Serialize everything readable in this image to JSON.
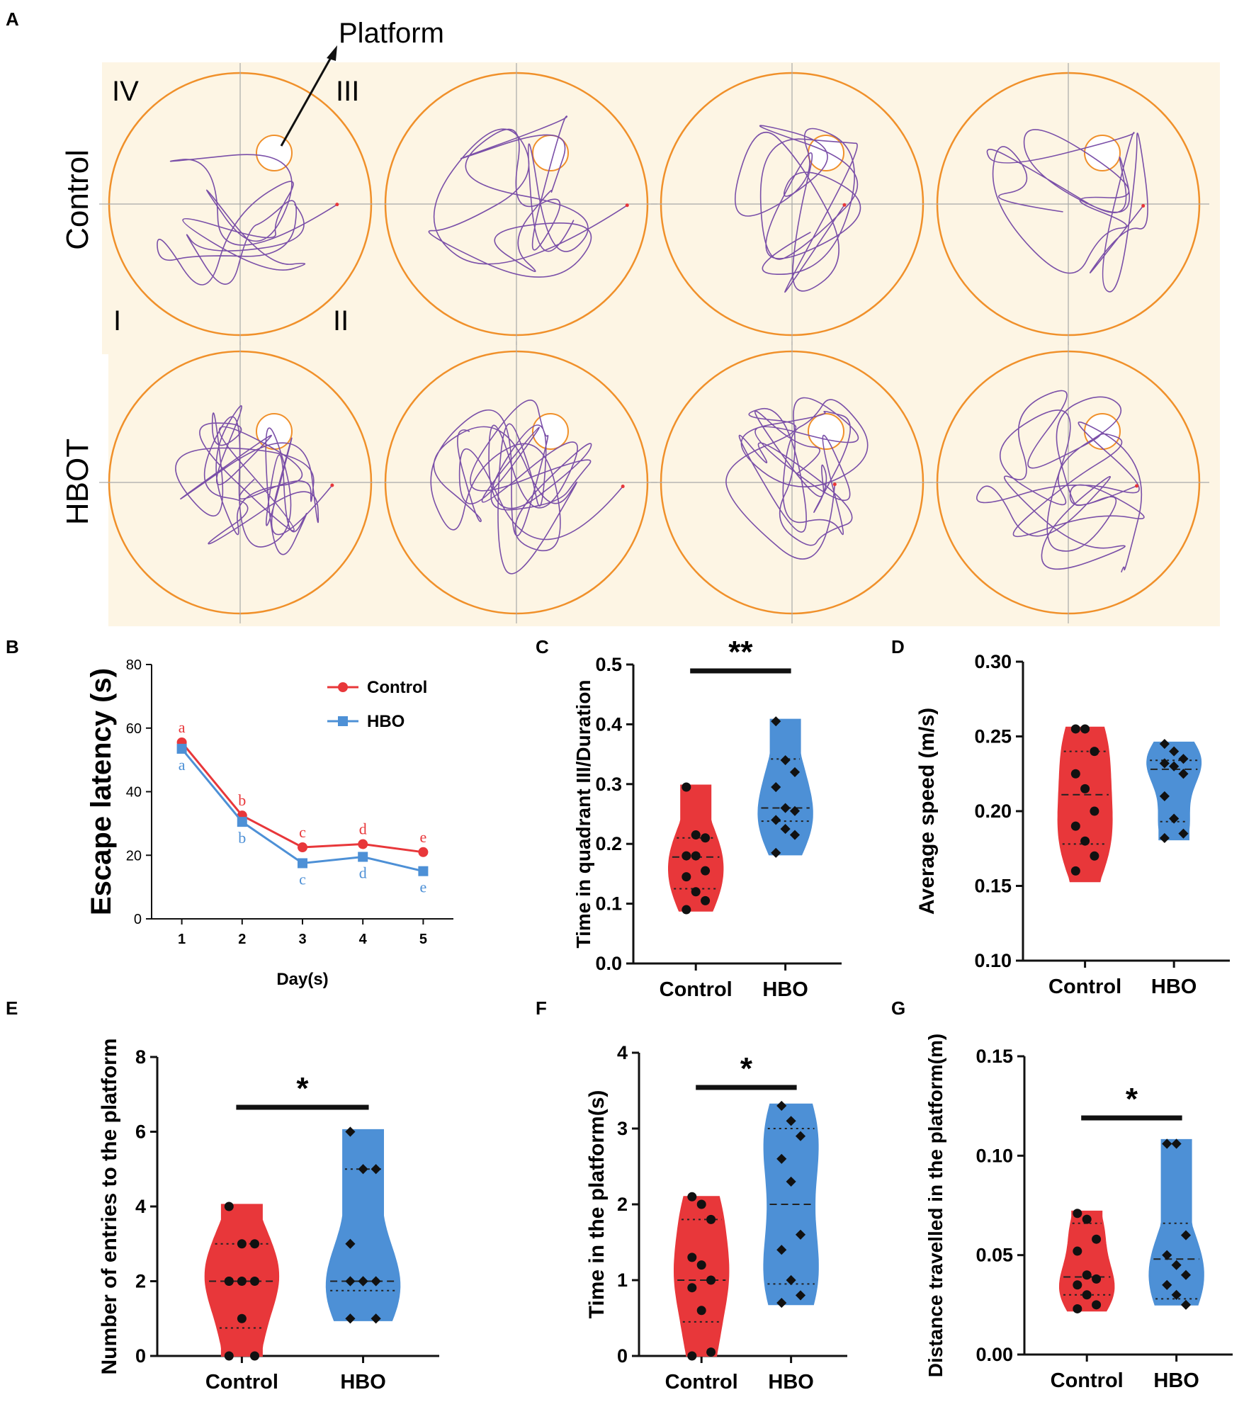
{
  "panel_letters": [
    "A",
    "B",
    "C",
    "D",
    "E",
    "F",
    "G"
  ],
  "panel_a": {
    "platform_label": "Platform",
    "quadrants": [
      "IV",
      "III",
      "I",
      "II"
    ],
    "row_labels": [
      "Control",
      "HBOT"
    ],
    "colors": {
      "tank": "#f0902a",
      "path": "#7a4fa8",
      "bg": "#fdf5e4",
      "cross": "#a9a9a9"
    }
  },
  "colors": {
    "control": "#e8373a",
    "hbo": "#4d90d6",
    "ink": "#111111"
  },
  "chart_data": [
    {
      "panel": "B",
      "type": "line",
      "xlabel": "Day(s)",
      "ylabel": "Escape latency (s)",
      "x": [
        1,
        2,
        3,
        4,
        5
      ],
      "xlim": [
        0.5,
        5.5
      ],
      "ylim": [
        0,
        80
      ],
      "yticks": [
        0,
        20,
        40,
        60,
        80
      ],
      "series": [
        {
          "name": "Control",
          "values": [
            55.5,
            32.5,
            22.5,
            23.5,
            21
          ],
          "letters": [
            "a",
            "b",
            "c",
            "d",
            "e"
          ]
        },
        {
          "name": "HBO",
          "values": [
            53.5,
            30.5,
            17.5,
            19.5,
            15
          ],
          "letters": [
            "a",
            "b",
            "c",
            "d",
            "e"
          ]
        }
      ]
    },
    {
      "panel": "C",
      "type": "violin",
      "ylabel": "Time in quadrant III/Duration",
      "categories": [
        "Control",
        "HBO"
      ],
      "ylim": [
        0,
        0.5
      ],
      "yticks": [
        "0.0",
        "0.1",
        "0.2",
        "0.3",
        "0.4",
        "0.5"
      ],
      "significance": "**",
      "series": [
        {
          "name": "Control",
          "points": [
            0.295,
            0.215,
            0.21,
            0.18,
            0.18,
            0.155,
            0.145,
            0.12,
            0.105,
            0.09
          ],
          "median": 0.178,
          "q1": 0.125,
          "q3": 0.21,
          "min": 0.088,
          "max": 0.298
        },
        {
          "name": "HBO",
          "points": [
            0.405,
            0.34,
            0.32,
            0.295,
            0.26,
            0.255,
            0.24,
            0.225,
            0.215,
            0.185
          ],
          "median": 0.26,
          "q1": 0.238,
          "q3": 0.342,
          "min": 0.182,
          "max": 0.408
        }
      ]
    },
    {
      "panel": "D",
      "type": "violin",
      "ylabel": "Average speed (m/s)",
      "categories": [
        "Control",
        "HBO"
      ],
      "ylim": [
        0.1,
        0.3
      ],
      "yticks": [
        "0.10",
        "0.15",
        "0.20",
        "0.25",
        "0.30"
      ],
      "significance": "",
      "series": [
        {
          "name": "Control",
          "points": [
            0.255,
            0.255,
            0.24,
            0.225,
            0.215,
            0.2,
            0.19,
            0.18,
            0.17,
            0.16
          ],
          "median": 0.211,
          "q1": 0.178,
          "q3": 0.24,
          "min": 0.153,
          "max": 0.256
        },
        {
          "name": "HBO",
          "points": [
            0.245,
            0.24,
            0.235,
            0.232,
            0.23,
            0.225,
            0.21,
            0.195,
            0.185,
            0.182
          ],
          "median": 0.228,
          "q1": 0.193,
          "q3": 0.234,
          "min": 0.181,
          "max": 0.246
        }
      ]
    },
    {
      "panel": "E",
      "type": "violin",
      "ylabel": "Number of entries to the platform",
      "categories": [
        "Control",
        "HBO"
      ],
      "ylim": [
        0,
        8
      ],
      "yticks": [
        "0",
        "2",
        "4",
        "6",
        "8"
      ],
      "significance": "*",
      "series": [
        {
          "name": "Control",
          "points": [
            4,
            3,
            3,
            2,
            2,
            2,
            2,
            1,
            0,
            0
          ],
          "median": 2,
          "q1": 0.75,
          "q3": 3,
          "min": 0,
          "max": 4.05
        },
        {
          "name": "HBO",
          "points": [
            6,
            5,
            5,
            3,
            2,
            2,
            2,
            2,
            1,
            1
          ],
          "median": 2,
          "q1": 1.75,
          "q3": 5,
          "min": 0.95,
          "max": 6.05
        }
      ]
    },
    {
      "panel": "F",
      "type": "violin",
      "ylabel": "Time in the platform(s)",
      "categories": [
        "Control",
        "HBO"
      ],
      "ylim": [
        0,
        4
      ],
      "yticks": [
        "0",
        "1",
        "2",
        "3",
        "4"
      ],
      "significance": "*",
      "series": [
        {
          "name": "Control",
          "points": [
            2.1,
            2.0,
            1.8,
            1.3,
            1.2,
            1.0,
            0.9,
            0.6,
            0.05,
            0.0
          ],
          "median": 1.0,
          "q1": 0.45,
          "q3": 1.8,
          "min": 0,
          "max": 2.1
        },
        {
          "name": "HBO",
          "points": [
            3.3,
            3.1,
            2.9,
            2.6,
            2.3,
            1.6,
            1.4,
            1.0,
            0.8,
            0.7
          ],
          "median": 2.0,
          "q1": 0.95,
          "q3": 3.0,
          "min": 0.68,
          "max": 3.32
        }
      ]
    },
    {
      "panel": "G",
      "type": "violin",
      "ylabel": "Distance travelled in the platform(m)",
      "categories": [
        "Control",
        "HBO"
      ],
      "ylim": [
        0,
        0.15
      ],
      "yticks": [
        "0.00",
        "0.05",
        "0.10",
        "0.15"
      ],
      "significance": "*",
      "series": [
        {
          "name": "Control",
          "points": [
            0.071,
            0.068,
            0.058,
            0.052,
            0.04,
            0.038,
            0.035,
            0.03,
            0.025,
            0.023
          ],
          "median": 0.039,
          "q1": 0.03,
          "q3": 0.066,
          "min": 0.022,
          "max": 0.072
        },
        {
          "name": "HBO",
          "points": [
            0.106,
            0.106,
            0.06,
            0.05,
            0.045,
            0.04,
            0.035,
            0.03,
            0.025
          ],
          "median": 0.048,
          "q1": 0.028,
          "q3": 0.066,
          "min": 0.025,
          "max": 0.108
        }
      ]
    }
  ]
}
